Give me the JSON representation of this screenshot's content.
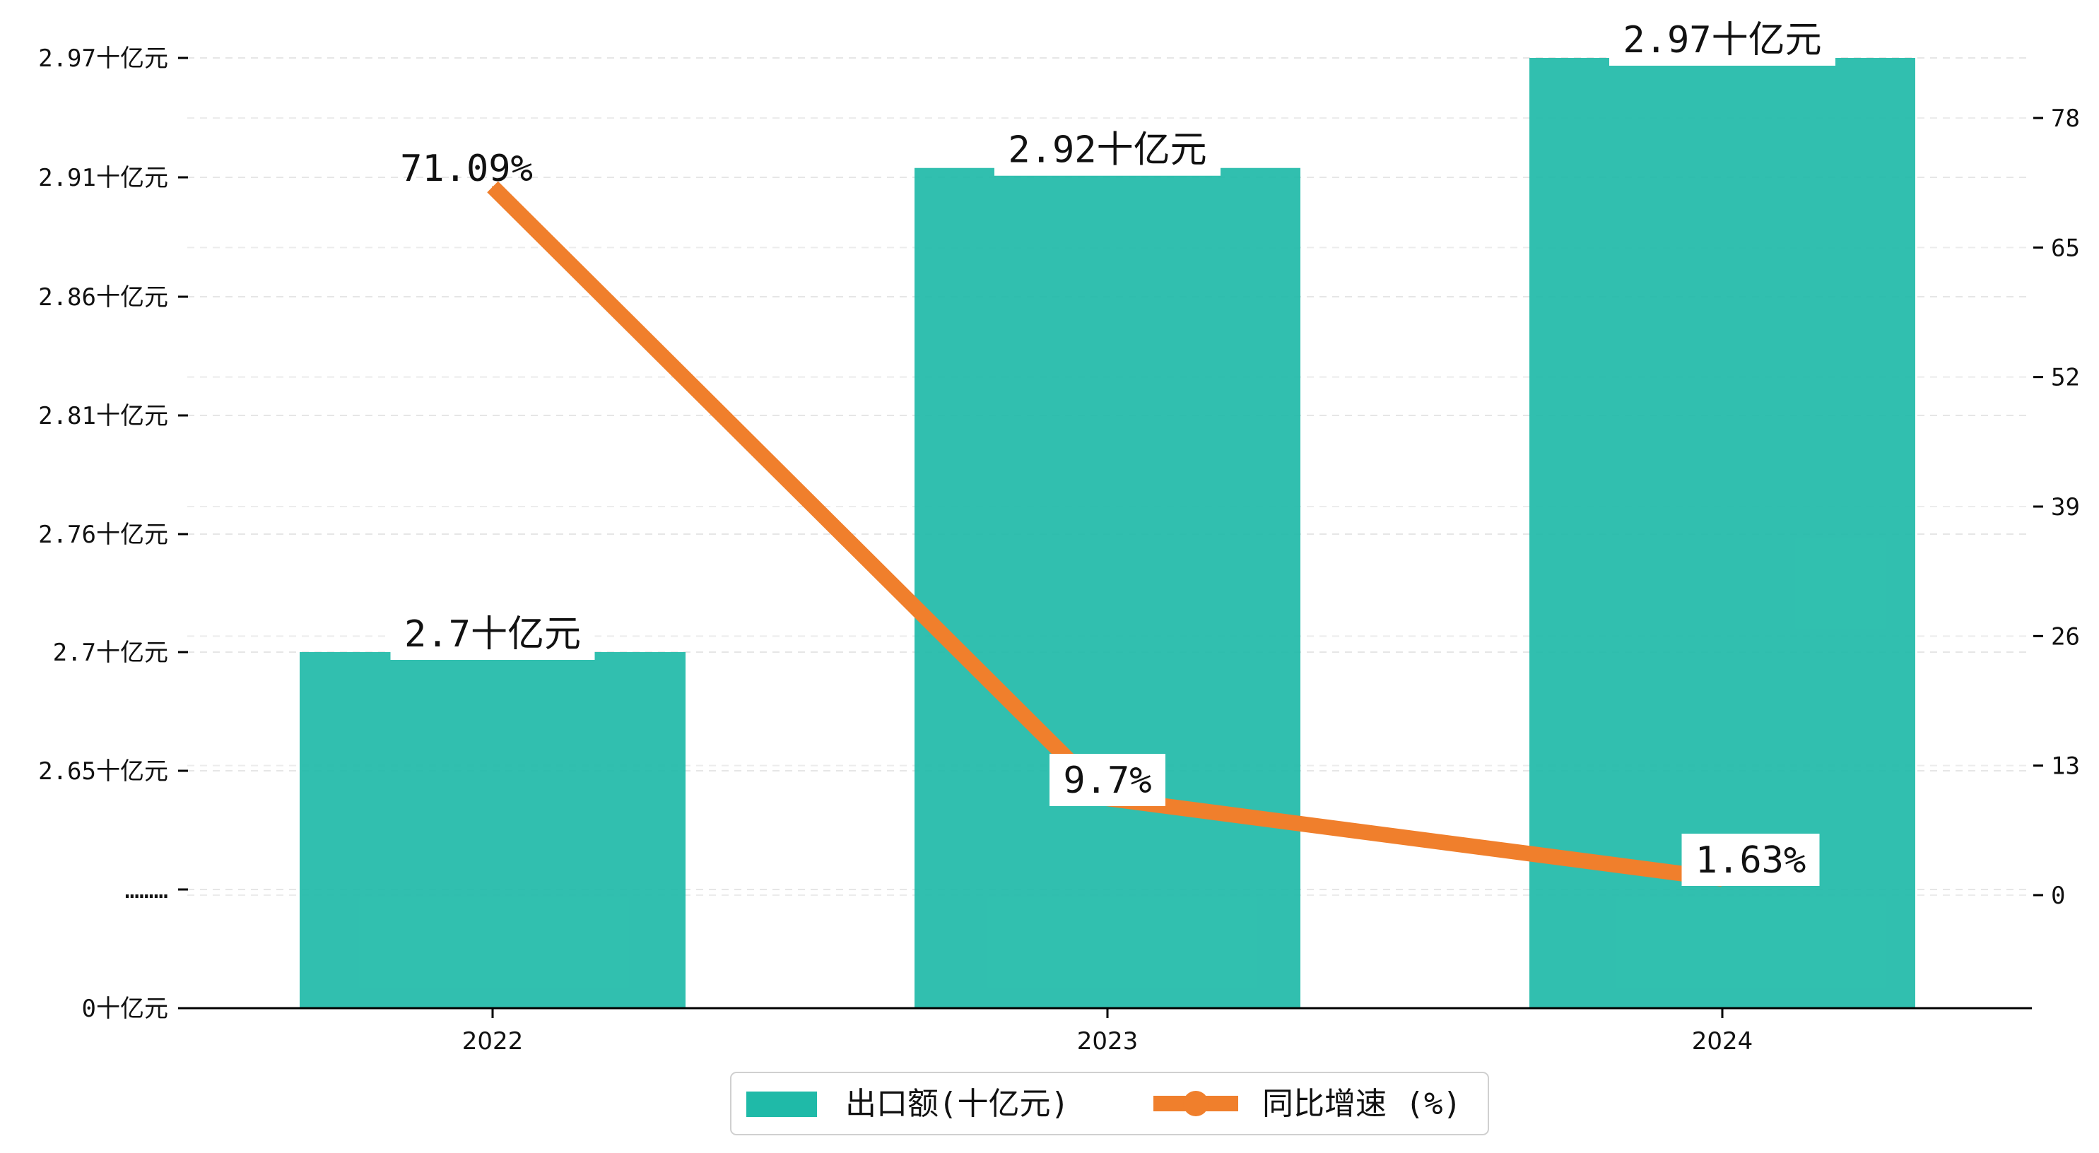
{
  "chart_data": {
    "type": "bar+line",
    "categories": [
      "2022",
      "2023",
      "2024"
    ],
    "series": [
      {
        "name": "出口额(十亿元)",
        "type": "bar",
        "axis": "left",
        "values": [
          2.7,
          2.92,
          2.97
        ],
        "labels": [
          "2.7十亿元",
          "2.92十亿元",
          "2.97十亿元"
        ],
        "color": "#1fbaa8"
      },
      {
        "name": "同比增速 (%)",
        "type": "line",
        "axis": "right",
        "values": [
          71.09,
          9.7,
          1.63
        ],
        "labels": [
          "71.09%",
          "9.7%",
          "1.63%"
        ],
        "color": "#f07f2c"
      }
    ],
    "left_axis": {
      "ticks": [
        "0十亿元",
        "………",
        "2.65十亿元",
        "2.7十亿元",
        "2.76十亿元",
        "2.81十亿元",
        "2.86十亿元",
        "2.91十亿元",
        "2.97十亿元"
      ],
      "broken": true
    },
    "right_axis": {
      "ticks": [
        0,
        13,
        26,
        39,
        52,
        65,
        78
      ]
    },
    "grid": "horizontal dashed",
    "legend": {
      "position": "bottom-center",
      "entries": [
        "出口额(十亿元)",
        "同比增速 (%)"
      ]
    }
  }
}
